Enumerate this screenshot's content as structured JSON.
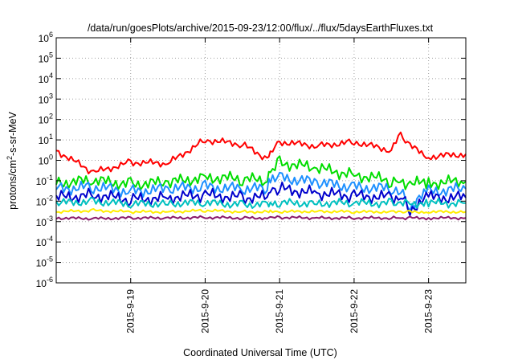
{
  "chart_data": {
    "type": "line",
    "title": "/data/run/goesPlots/archive/2015-09-23/12:00/flux/../flux/5daysEarthFluxes.txt",
    "xlabel": "Coordinated Universal Time (UTC)",
    "ylabel": {
      "pre": "protons/cm",
      "sup": "2",
      "post": "-s-sr-MeV"
    },
    "yscale": "log",
    "ylim": [
      -6,
      6
    ],
    "y_ticks": [
      {
        "base": "10",
        "exp": "6"
      },
      {
        "base": "10",
        "exp": "5"
      },
      {
        "base": "10",
        "exp": "4"
      },
      {
        "base": "10",
        "exp": "3"
      },
      {
        "base": "10",
        "exp": "2"
      },
      {
        "base": "10",
        "exp": "1"
      },
      {
        "base": "10",
        "exp": "0"
      },
      {
        "base": "10",
        "exp": "-1"
      },
      {
        "base": "10",
        "exp": "-2"
      },
      {
        "base": "10",
        "exp": "-3"
      },
      {
        "base": "10",
        "exp": "-4"
      },
      {
        "base": "10",
        "exp": "-5"
      },
      {
        "base": "10",
        "exp": "-6"
      }
    ],
    "xlim": [
      "2015-09-18 00:00",
      "2015-09-23 12:00"
    ],
    "x_ticks": [
      "2015-9-19",
      "2015-9-20",
      "2015-9-21",
      "2015-9-22",
      "2015-9-23"
    ],
    "grid": true,
    "x": [
      "2015-09-18 00:00",
      "2015-09-18 12:00",
      "2015-09-19 00:00",
      "2015-09-19 12:00",
      "2015-09-20 00:00",
      "2015-09-20 12:00",
      "2015-09-20 20:00",
      "2015-09-20 21:00",
      "2015-09-21 00:00",
      "2015-09-21 12:00",
      "2015-09-22 00:00",
      "2015-09-22 12:00",
      "2015-09-22 15:00",
      "2015-09-22 18:00",
      "2015-09-23 00:00",
      "2015-09-23 12:00"
    ],
    "series": [
      {
        "color": "#ff0000",
        "values": [
          3,
          0.25,
          0.8,
          0.7,
          10,
          6,
          1.2,
          2,
          8,
          5,
          8,
          3,
          20,
          5,
          1.5,
          2
        ]
      },
      {
        "color": "#00dd00",
        "values": [
          0.08,
          0.1,
          0.07,
          0.08,
          0.15,
          0.12,
          0.1,
          0.25,
          0.8,
          0.4,
          0.2,
          0.1,
          0.08,
          0.07,
          0.08,
          0.09
        ]
      },
      {
        "color": "#1e90ff",
        "values": [
          0.04,
          0.05,
          0.03,
          0.04,
          0.05,
          0.04,
          0.04,
          0.15,
          0.15,
          0.08,
          0.05,
          0.04,
          0.03,
          0.005,
          0.03,
          0.04
        ]
      },
      {
        "color": "#0000cc",
        "values": [
          0.015,
          0.02,
          0.012,
          0.015,
          0.02,
          0.015,
          0.015,
          0.05,
          0.04,
          0.025,
          0.018,
          0.016,
          0.015,
          0.004,
          0.015,
          0.015
        ]
      },
      {
        "color": "#00c0c0",
        "values": [
          0.008,
          0.01,
          0.007,
          0.008,
          0.008,
          0.007,
          0.007,
          0.008,
          0.008,
          0.008,
          0.008,
          0.008,
          0.008,
          0.008,
          0.008,
          0.008
        ]
      },
      {
        "color": "#ffee00",
        "values": [
          0.003,
          0.0035,
          0.003,
          0.003,
          0.0035,
          0.003,
          0.003,
          0.003,
          0.003,
          0.0032,
          0.003,
          0.003,
          0.003,
          0.003,
          0.003,
          0.003
        ]
      },
      {
        "color": "#8b1a6b",
        "values": [
          0.0015,
          0.0014,
          0.0015,
          0.0015,
          0.0016,
          0.0015,
          0.0015,
          0.0015,
          0.0016,
          0.0015,
          0.0015,
          0.0015,
          0.0015,
          0.0015,
          0.0015,
          0.0015
        ]
      }
    ]
  }
}
